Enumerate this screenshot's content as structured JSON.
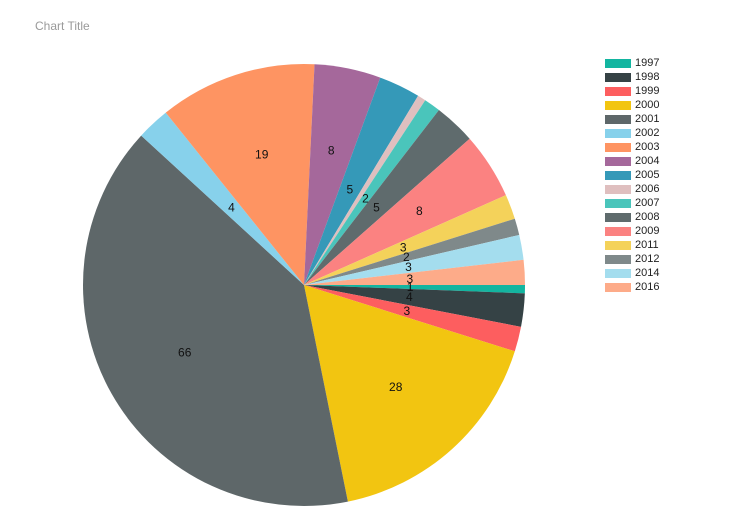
{
  "chart_data": {
    "type": "pie",
    "title": "Chart Title",
    "legend_position": "top-right",
    "start_clockwise_from": "right",
    "slices": [
      {
        "label": "1997",
        "value": 1,
        "color": "#13b5a0"
      },
      {
        "label": "1998",
        "value": 4,
        "color": "#354245"
      },
      {
        "label": "1999",
        "value": 3,
        "color": "#fd5e5f"
      },
      {
        "label": "2000",
        "value": 28,
        "color": "#f2c511"
      },
      {
        "label": "2001",
        "value": 66,
        "color": "#5e6769"
      },
      {
        "label": "2002",
        "value": 4,
        "color": "#87d1eb"
      },
      {
        "label": "2003",
        "value": 19,
        "color": "#fe9462"
      },
      {
        "label": "2004",
        "value": 8,
        "color": "#a5689b"
      },
      {
        "label": "2005",
        "value": 5,
        "color": "#3599b8"
      },
      {
        "label": "2006",
        "value": 1,
        "color": "#dfbfbf"
      },
      {
        "label": "2007",
        "value": 2,
        "color": "#4ac5bb"
      },
      {
        "label": "2008",
        "value": 5,
        "color": "#5f6b6d"
      },
      {
        "label": "2009",
        "value": 8,
        "color": "#fb8281"
      },
      {
        "label": "2011",
        "value": 3,
        "color": "#f4d25a"
      },
      {
        "label": "2012",
        "value": 2,
        "color": "#7f898a"
      },
      {
        "label": "2014",
        "value": 3,
        "color": "#a4ddee"
      },
      {
        "label": "2016",
        "value": 3,
        "color": "#fdab89"
      }
    ],
    "data_labels": [
      "1",
      "4",
      "3",
      "28",
      "66",
      "4",
      "19",
      "8",
      "5",
      "",
      "2",
      "5",
      "8",
      "3",
      "2",
      "3",
      "3"
    ]
  }
}
